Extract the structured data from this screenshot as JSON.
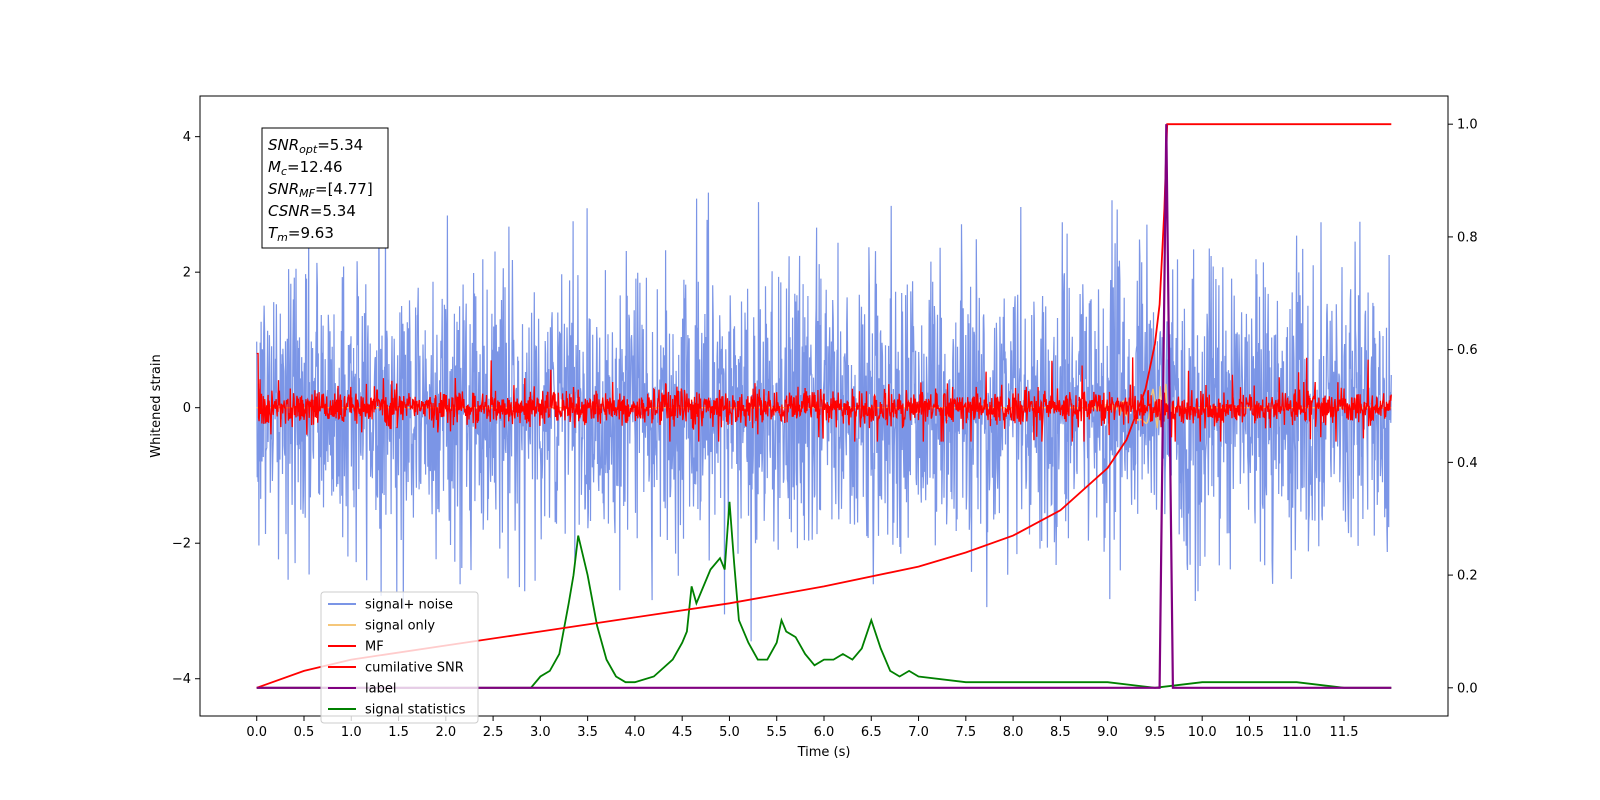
{
  "chart_data": {
    "type": "line",
    "xlabel": "Time (s)",
    "ylabel": "Whitened strain",
    "xlim": [
      -0.6,
      12.6
    ],
    "ylim": [
      -4.55,
      4.6
    ],
    "y2lim": [
      -0.05,
      1.05
    ],
    "x_ticks": [
      "0.0",
      "0.5",
      "1.0",
      "1.5",
      "2.0",
      "2.5",
      "3.0",
      "3.5",
      "4.0",
      "4.5",
      "5.0",
      "5.5",
      "6.0",
      "6.5",
      "7.0",
      "7.5",
      "8.0",
      "8.5",
      "9.0",
      "9.5",
      "10.0",
      "10.5",
      "11.0",
      "11.5"
    ],
    "y_ticks": [
      "4",
      "2",
      "0",
      "−2",
      "−4"
    ],
    "y2_ticks": [
      "1.0",
      "0.8",
      "0.6",
      "0.4",
      "0.2",
      "0.0"
    ],
    "legend_position": "lower-left",
    "annotation": {
      "snr_opt": {
        "label": "SNR",
        "sub": "opt",
        "value": "=5.34"
      },
      "mc": {
        "label": "M",
        "sub": "c",
        "value": "=12.46"
      },
      "snr_mf": {
        "label": "SNR",
        "sub": "MF",
        "value": "=[4.77]"
      },
      "csnr": {
        "label": "CSNR",
        "value": "=5.34"
      },
      "tm": {
        "label": "T",
        "sub": "m",
        "value": "=9.63"
      }
    },
    "series": [
      {
        "name": "signal+ noise",
        "color": "#7b95e6",
        "description": "noisy whitened strain, spans roughly -3.8 to 4.2 across 0–12 s",
        "y_range": [
          -3.8,
          4.2
        ]
      },
      {
        "name": "signal only",
        "color": "#f5c77a",
        "description": "chirp signal, visible near 9.3–9.7 s with amplitude ~0.4",
        "y_range": [
          -0.4,
          0.4
        ]
      },
      {
        "name": "MF",
        "color": "#ff0000",
        "description": "matched-filter output, noise band about ±0.35 with spikes to ~0.8"
      },
      {
        "name": "cumilative SNR",
        "color": "#ff0000",
        "axis": "right",
        "x": [
          0.0,
          0.5,
          1.0,
          2.0,
          3.0,
          4.0,
          5.0,
          6.0,
          7.0,
          7.5,
          8.0,
          8.5,
          9.0,
          9.2,
          9.4,
          9.5,
          9.55,
          9.6,
          9.63,
          10.0,
          12.0
        ],
        "values": [
          0.0,
          0.03,
          0.05,
          0.075,
          0.1,
          0.125,
          0.15,
          0.18,
          0.215,
          0.24,
          0.27,
          0.315,
          0.39,
          0.44,
          0.53,
          0.61,
          0.68,
          0.85,
          1.0,
          1.0,
          1.0
        ]
      },
      {
        "name": "label",
        "color": "#800080",
        "axis": "right",
        "x": [
          0.0,
          9.55,
          9.62,
          9.69,
          12.0
        ],
        "values": [
          0.0,
          0.0,
          1.0,
          0.0,
          0.0
        ]
      },
      {
        "name": "signal statistics",
        "color": "#008000",
        "axis": "right",
        "x": [
          0.0,
          0.5,
          1.0,
          1.5,
          2.0,
          2.5,
          2.9,
          3.0,
          3.1,
          3.2,
          3.3,
          3.35,
          3.4,
          3.5,
          3.6,
          3.7,
          3.8,
          3.9,
          4.0,
          4.2,
          4.4,
          4.5,
          4.55,
          4.6,
          4.65,
          4.7,
          4.8,
          4.9,
          4.95,
          5.0,
          5.05,
          5.1,
          5.2,
          5.3,
          5.4,
          5.5,
          5.55,
          5.6,
          5.7,
          5.8,
          5.9,
          6.0,
          6.1,
          6.2,
          6.3,
          6.4,
          6.5,
          6.6,
          6.7,
          6.8,
          6.9,
          7.0,
          7.5,
          8.0,
          8.5,
          9.0,
          9.5,
          10.0,
          10.5,
          11.0,
          11.5,
          12.0
        ],
        "values": [
          0.0,
          0.0,
          0.0,
          0.0,
          0.0,
          0.0,
          0.0,
          0.02,
          0.03,
          0.06,
          0.15,
          0.2,
          0.27,
          0.2,
          0.11,
          0.05,
          0.02,
          0.01,
          0.01,
          0.02,
          0.05,
          0.08,
          0.1,
          0.18,
          0.15,
          0.17,
          0.21,
          0.23,
          0.21,
          0.33,
          0.22,
          0.12,
          0.08,
          0.05,
          0.05,
          0.08,
          0.12,
          0.1,
          0.09,
          0.06,
          0.04,
          0.05,
          0.05,
          0.06,
          0.05,
          0.07,
          0.12,
          0.07,
          0.03,
          0.02,
          0.03,
          0.02,
          0.01,
          0.01,
          0.01,
          0.01,
          0.0,
          0.01,
          0.01,
          0.01,
          0.0,
          0.0
        ]
      }
    ]
  }
}
